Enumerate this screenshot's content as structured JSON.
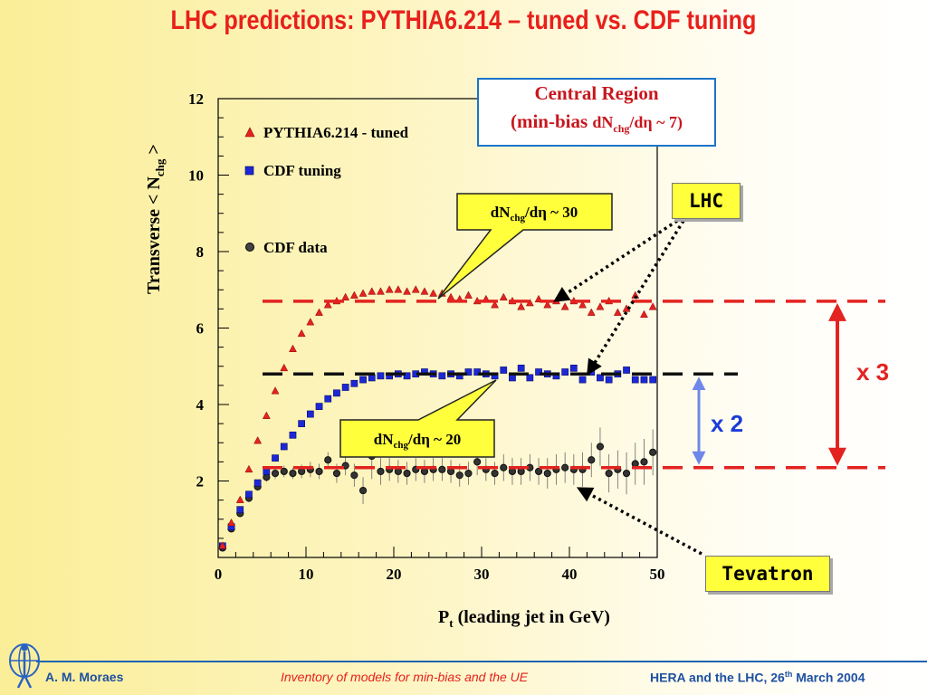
{
  "title": "LHC predictions: PYTHIA6.214 – tuned vs. CDF tuning",
  "footer": {
    "author": "A. M. Moraes",
    "center": "Inventory of models for min-bias and the UE",
    "right_main": "HERA and the LHC, 26",
    "right_sup": "th",
    "right_tail": " March 2004"
  },
  "central_box": {
    "line1": "Central Region",
    "line2_pre": "(min-bias ",
    "line2_dn": "dN",
    "line2_sub": "chg",
    "line2_post": "/dη ~ 7)"
  },
  "callout_30": {
    "dn": "dN",
    "sub": "chg",
    "post": "/dη ~ 30"
  },
  "callout_20": {
    "dn": "dN",
    "sub": "chg",
    "post": "/dη ~ 20"
  },
  "lhc_label": "LHC",
  "tevatron_label": "Tevatron",
  "ratio_x3": "x 3",
  "ratio_x2": "x 2",
  "colors": {
    "pythia": "#e32320",
    "cdf_tuning": "#1c28d6",
    "data": "#111111",
    "ratio3": "#e32320",
    "ratio2": "#6f87e8"
  },
  "chart_data": {
    "type": "scatter",
    "xlabel_main": "P",
    "xlabel_sub": "t",
    "xlabel_tail": " (leading jet in GeV)",
    "ylabel_main": "Transverse < N",
    "ylabel_sub": "chg",
    "ylabel_tail": " >",
    "xlim": [
      0,
      50
    ],
    "ylim": [
      0,
      12
    ],
    "xticks": [
      0,
      10,
      20,
      30,
      40,
      50
    ],
    "yticks": [
      2,
      4,
      6,
      8,
      10,
      12
    ],
    "legend": [
      "PYTHIA6.214 - tuned",
      "CDF tuning",
      "CDF data"
    ],
    "series": [
      {
        "name": "PYTHIA6.214 - tuned",
        "marker": "triangle",
        "x": [
          0.5,
          1.5,
          2.5,
          3.5,
          4.5,
          5.5,
          6.5,
          7.5,
          8.5,
          9.5,
          10.5,
          11.5,
          12.5,
          13.5,
          14.5,
          15.5,
          16.5,
          17.5,
          18.5,
          19.5,
          20.5,
          21.5,
          22.5,
          23.5,
          24.5,
          25.5,
          26.5,
          27.5,
          28.5,
          29.5,
          30.5,
          31.5,
          32.5,
          33.5,
          34.5,
          35.5,
          36.5,
          37.5,
          38.5,
          39.5,
          40.5,
          41.5,
          42.5,
          43.5,
          44.5,
          45.5,
          46.5,
          47.5,
          48.5,
          49.5
        ],
        "y": [
          0.3,
          0.9,
          1.5,
          2.3,
          3.05,
          3.7,
          4.35,
          4.95,
          5.45,
          5.85,
          6.15,
          6.4,
          6.6,
          6.7,
          6.8,
          6.85,
          6.9,
          6.95,
          6.95,
          7.0,
          7.0,
          6.95,
          7.0,
          6.95,
          6.9,
          6.9,
          6.8,
          6.75,
          6.85,
          6.7,
          6.75,
          6.6,
          6.8,
          6.7,
          6.55,
          6.65,
          6.75,
          6.6,
          6.7,
          6.55,
          6.7,
          6.6,
          6.4,
          6.55,
          6.7,
          6.4,
          6.5,
          6.85,
          6.35,
          6.55
        ]
      },
      {
        "name": "CDF tuning",
        "marker": "square",
        "x": [
          0.5,
          1.5,
          2.5,
          3.5,
          4.5,
          5.5,
          6.5,
          7.5,
          8.5,
          9.5,
          10.5,
          11.5,
          12.5,
          13.5,
          14.5,
          15.5,
          16.5,
          17.5,
          18.5,
          19.5,
          20.5,
          21.5,
          22.5,
          23.5,
          24.5,
          25.5,
          26.5,
          27.5,
          28.5,
          29.5,
          30.5,
          31.5,
          32.5,
          33.5,
          34.5,
          35.5,
          36.5,
          37.5,
          38.5,
          39.5,
          40.5,
          41.5,
          42.5,
          43.5,
          44.5,
          45.5,
          46.5,
          47.5,
          48.5,
          49.5
        ],
        "y": [
          0.3,
          0.8,
          1.25,
          1.65,
          1.95,
          2.25,
          2.6,
          2.9,
          3.2,
          3.5,
          3.75,
          3.95,
          4.15,
          4.3,
          4.45,
          4.55,
          4.65,
          4.7,
          4.75,
          4.75,
          4.8,
          4.75,
          4.8,
          4.85,
          4.8,
          4.75,
          4.8,
          4.75,
          4.85,
          4.85,
          4.8,
          4.75,
          4.9,
          4.7,
          4.95,
          4.7,
          4.85,
          4.8,
          4.75,
          4.85,
          4.95,
          4.65,
          4.85,
          4.7,
          4.65,
          4.8,
          4.9,
          4.65,
          4.65,
          4.65
        ]
      },
      {
        "name": "CDF data",
        "marker": "circle",
        "x": [
          0.5,
          1.5,
          2.5,
          3.5,
          4.5,
          5.5,
          6.5,
          7.5,
          8.5,
          9.5,
          10.5,
          11.5,
          12.5,
          13.5,
          14.5,
          15.5,
          16.5,
          17.5,
          18.5,
          19.5,
          20.5,
          21.5,
          22.5,
          23.5,
          24.5,
          25.5,
          26.5,
          27.5,
          28.5,
          29.5,
          30.5,
          31.5,
          32.5,
          33.5,
          34.5,
          35.5,
          36.5,
          37.5,
          38.5,
          39.5,
          40.5,
          41.5,
          42.5,
          43.5,
          44.5,
          45.5,
          46.5,
          47.5,
          48.5,
          49.5
        ],
        "y": [
          0.25,
          0.75,
          1.15,
          1.55,
          1.85,
          2.1,
          2.2,
          2.25,
          2.2,
          2.25,
          2.3,
          2.25,
          2.55,
          2.2,
          2.4,
          2.15,
          1.75,
          2.65,
          2.25,
          2.3,
          2.25,
          2.2,
          2.3,
          2.25,
          2.3,
          2.3,
          2.25,
          2.15,
          2.2,
          2.5,
          2.3,
          2.2,
          2.35,
          2.25,
          2.25,
          2.35,
          2.25,
          2.2,
          2.3,
          2.35,
          2.3,
          2.3,
          2.55,
          2.9,
          2.2,
          2.3,
          2.2,
          2.45,
          2.5,
          2.75
        ],
        "err": [
          0.05,
          0.07,
          0.08,
          0.1,
          0.1,
          0.12,
          0.15,
          0.15,
          0.15,
          0.18,
          0.2,
          0.2,
          0.2,
          0.25,
          0.25,
          0.3,
          0.35,
          0.6,
          0.35,
          0.3,
          0.3,
          0.3,
          0.3,
          0.3,
          0.3,
          0.3,
          0.3,
          0.3,
          0.3,
          0.35,
          0.3,
          0.3,
          0.35,
          0.35,
          0.35,
          0.35,
          0.35,
          0.4,
          0.4,
          0.4,
          0.4,
          0.45,
          0.45,
          0.5,
          0.5,
          0.5,
          0.55,
          0.55,
          0.6,
          0.6
        ]
      }
    ],
    "reference_lines": [
      {
        "name": "lhc-pythia-level",
        "y": 6.7,
        "color": "#e32320"
      },
      {
        "name": "lhc-cdf-tuning-level",
        "y": 4.8,
        "color": "#111111"
      },
      {
        "name": "tevatron-level",
        "y": 2.35,
        "color": "#e32320"
      }
    ]
  }
}
